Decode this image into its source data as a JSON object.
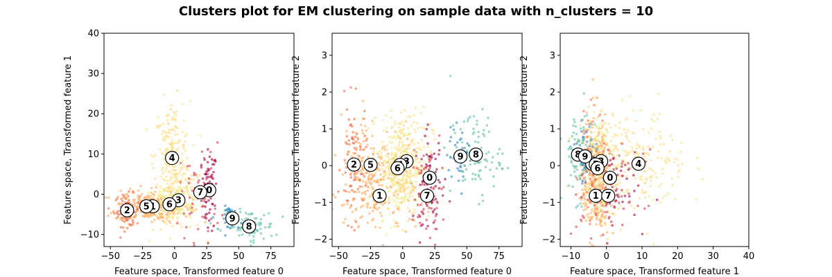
{
  "figure": {
    "title": "Clusters plot for EM clustering on sample data with n_clusters = 10"
  },
  "palette": [
    "#9e0142",
    "#d53e4f",
    "#f46d43",
    "#fdae61",
    "#fee08b",
    "#ffffbf",
    "#e6f598",
    "#abdda4",
    "#66c2a5",
    "#3288bd"
  ],
  "chart_data": [
    {
      "type": "scatter",
      "xlabel": "Feature space, Transformed feature 0",
      "ylabel": "Feature space, Transformed feature 1",
      "xlim": [
        -55,
        93
      ],
      "ylim": [
        -13,
        40
      ],
      "xticks": [
        -50,
        -25,
        0,
        25,
        50,
        75
      ],
      "yticks": [
        -10,
        0,
        10,
        20,
        30,
        40
      ],
      "clusters": [
        {
          "label": "0",
          "center": [
            27,
            1
          ],
          "spread": [
            3,
            5
          ],
          "color": "#9e0142",
          "n": 70
        },
        {
          "label": "1",
          "center": [
            -17,
            -3
          ],
          "spread": [
            15,
            2
          ],
          "color": "#fdae61",
          "n": 150
        },
        {
          "label": "2",
          "center": [
            -37,
            -4
          ],
          "spread": [
            5,
            2
          ],
          "color": "#f46d43",
          "n": 90
        },
        {
          "label": "3",
          "center": [
            3,
            -1.5
          ],
          "spread": [
            10,
            4
          ],
          "color": "#fee08b",
          "n": 150
        },
        {
          "label": "4",
          "center": [
            -2,
            9
          ],
          "spread": [
            7,
            7
          ],
          "color": "#fee08b",
          "n": 220
        },
        {
          "label": "5",
          "center": [
            -22,
            -3
          ],
          "spread": [
            12,
            2
          ],
          "color": "#fdae61",
          "n": 120
        },
        {
          "label": "6",
          "center": [
            -4,
            -2.5
          ],
          "spread": [
            8,
            2
          ],
          "color": "#e6f598",
          "n": 100
        },
        {
          "label": "7",
          "center": [
            20,
            0.5
          ],
          "spread": [
            8,
            6
          ],
          "color": "#d53e4f",
          "n": 60
        },
        {
          "label": "8",
          "center": [
            58,
            -8
          ],
          "spread": [
            10,
            2
          ],
          "color": "#66c2a5",
          "n": 80
        },
        {
          "label": "9",
          "center": [
            45,
            -6
          ],
          "spread": [
            4,
            1.5
          ],
          "color": "#3288bd",
          "n": 40
        }
      ]
    },
    {
      "type": "scatter",
      "xlabel": "Feature space, Transformed feature 0",
      "ylabel": "Feature space, Transformed feature 2",
      "xlim": [
        -55,
        93
      ],
      "ylim": [
        -2.2,
        3.6
      ],
      "xticks": [
        -50,
        -25,
        0,
        25,
        50,
        75
      ],
      "yticks": [
        -2,
        -1,
        0,
        1,
        2,
        3
      ],
      "clusters": [
        {
          "label": "0",
          "center": [
            21,
            -0.33
          ],
          "spread": [
            6,
            0.6
          ],
          "color": "#9e0142",
          "n": 70
        },
        {
          "label": "1",
          "center": [
            -18,
            -0.82
          ],
          "spread": [
            14,
            0.6
          ],
          "color": "#fdae61",
          "n": 150
        },
        {
          "label": "2",
          "center": [
            -38,
            0.03
          ],
          "spread": [
            5,
            0.8
          ],
          "color": "#f46d43",
          "n": 90
        },
        {
          "label": "3",
          "center": [
            3,
            0.12
          ],
          "spread": [
            10,
            0.7
          ],
          "color": "#fee08b",
          "n": 150
        },
        {
          "label": "4",
          "center": [
            -2,
            0.02
          ],
          "spread": [
            8,
            0.7
          ],
          "color": "#fee08b",
          "n": 220
        },
        {
          "label": "5",
          "center": [
            -25,
            0.02
          ],
          "spread": [
            12,
            0.7
          ],
          "color": "#fdae61",
          "n": 120
        },
        {
          "label": "6",
          "center": [
            -4,
            -0.07
          ],
          "spread": [
            8,
            0.6
          ],
          "color": "#e6f598",
          "n": 100
        },
        {
          "label": "7",
          "center": [
            19,
            -0.82
          ],
          "spread": [
            6,
            0.6
          ],
          "color": "#d53e4f",
          "n": 60
        },
        {
          "label": "8",
          "center": [
            57,
            0.3
          ],
          "spread": [
            10,
            0.6
          ],
          "color": "#66c2a5",
          "n": 80
        },
        {
          "label": "9",
          "center": [
            45,
            0.25
          ],
          "spread": [
            5,
            0.4
          ],
          "color": "#3288bd",
          "n": 40
        }
      ]
    },
    {
      "type": "scatter",
      "xlabel": "Feature space, Transformed feature 1",
      "ylabel": "Feature space, Transformed feature 2",
      "xlim": [
        -13,
        40
      ],
      "ylim": [
        -2.2,
        3.6
      ],
      "xticks": [
        -10,
        0,
        10,
        20,
        30,
        40
      ],
      "yticks": [
        -2,
        -1,
        0,
        1,
        2,
        3
      ],
      "clusters": [
        {
          "label": "0",
          "center": [
            1,
            -0.33
          ],
          "spread": [
            4,
            0.6
          ],
          "color": "#9e0142",
          "n": 70
        },
        {
          "label": "1",
          "center": [
            -3,
            -0.82
          ],
          "spread": [
            2,
            0.6
          ],
          "color": "#fdae61",
          "n": 150
        },
        {
          "label": "2",
          "center": [
            -4,
            0.05
          ],
          "spread": [
            2,
            0.8
          ],
          "color": "#f46d43",
          "n": 90
        },
        {
          "label": "3",
          "center": [
            -1.5,
            0.12
          ],
          "spread": [
            3,
            0.7
          ],
          "color": "#fee08b",
          "n": 150
        },
        {
          "label": "4",
          "center": [
            9,
            0.05
          ],
          "spread": [
            7,
            0.7
          ],
          "color": "#fee08b",
          "n": 220
        },
        {
          "label": "5",
          "center": [
            -3,
            0.03
          ],
          "spread": [
            2,
            0.7
          ],
          "color": "#fdae61",
          "n": 120
        },
        {
          "label": "6",
          "center": [
            -2.5,
            -0.07
          ],
          "spread": [
            2,
            0.6
          ],
          "color": "#e6f598",
          "n": 100
        },
        {
          "label": "7",
          "center": [
            0.5,
            -0.82
          ],
          "spread": [
            5,
            0.6
          ],
          "color": "#d53e4f",
          "n": 60
        },
        {
          "label": "8",
          "center": [
            -8,
            0.3
          ],
          "spread": [
            2,
            0.6
          ],
          "color": "#66c2a5",
          "n": 80
        },
        {
          "label": "9",
          "center": [
            -6,
            0.25
          ],
          "spread": [
            1.5,
            0.4
          ],
          "color": "#3288bd",
          "n": 40
        }
      ]
    }
  ]
}
